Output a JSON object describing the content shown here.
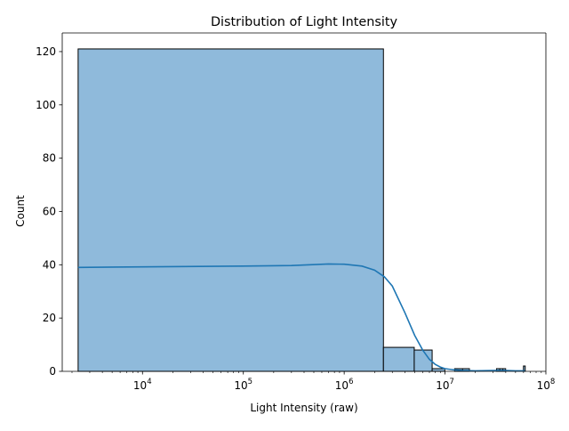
{
  "chart_data": {
    "type": "bar",
    "title": "Distribution of Light Intensity",
    "xlabel": "Light Intensity (raw)",
    "ylabel": "Count",
    "x_scale": "log",
    "xlim": [
      1600,
      100000000
    ],
    "ylim": [
      0,
      127
    ],
    "x_ticks": [
      {
        "value": 10000,
        "base": "10",
        "exp": "4"
      },
      {
        "value": 100000,
        "base": "10",
        "exp": "5"
      },
      {
        "value": 1000000,
        "base": "10",
        "exp": "6"
      },
      {
        "value": 10000000,
        "base": "10",
        "exp": "7"
      },
      {
        "value": 100000000,
        "base": "10",
        "exp": "8"
      }
    ],
    "y_ticks": [
      {
        "value": 0,
        "label": "0"
      },
      {
        "value": 20,
        "label": "20"
      },
      {
        "value": 40,
        "label": "40"
      },
      {
        "value": 60,
        "label": "60"
      },
      {
        "value": 80,
        "label": "80"
      },
      {
        "value": 100,
        "label": "100"
      },
      {
        "value": 120,
        "label": "120"
      }
    ],
    "bins": [
      {
        "x0": 2300,
        "x1": 2450000,
        "count": 121
      },
      {
        "x0": 2450000,
        "x1": 4950000,
        "count": 9
      },
      {
        "x0": 4950000,
        "x1": 7450000,
        "count": 8
      },
      {
        "x0": 7450000,
        "x1": 9950000,
        "count": 1
      },
      {
        "x0": 9950000,
        "x1": 12450000,
        "count": 0
      },
      {
        "x0": 12450000,
        "x1": 14950000,
        "count": 1
      },
      {
        "x0": 14950000,
        "x1": 17450000,
        "count": 1
      },
      {
        "x0": 17450000,
        "x1": 32400000,
        "count": 0
      },
      {
        "x0": 32400000,
        "x1": 34900000,
        "count": 1
      },
      {
        "x0": 34900000,
        "x1": 37400000,
        "count": 1
      },
      {
        "x0": 37400000,
        "x1": 39900000,
        "count": 1
      },
      {
        "x0": 39900000,
        "x1": 59900000,
        "count": 0
      },
      {
        "x0": 59900000,
        "x1": 62400000,
        "count": 2
      }
    ],
    "kde": {
      "x": [
        2300,
        10000,
        100000,
        300000,
        700000,
        1000000,
        1500000,
        2000000,
        2500000,
        3000000,
        4000000,
        5000000,
        6000000,
        7000000,
        8000000,
        9000000,
        10000000,
        12000000,
        15000000,
        20000000,
        30000000,
        40000000,
        50000000,
        62000000
      ],
      "y": [
        39,
        39.2,
        39.5,
        39.7,
        40.3,
        40.2,
        39.5,
        38,
        35.5,
        32,
        22,
        13.5,
        8,
        4.5,
        2.6,
        1.6,
        1.0,
        0.6,
        0.3,
        0.2,
        0.3,
        0.3,
        0.2,
        0.2
      ]
    },
    "colors": {
      "bar_fill": "#8fbadb",
      "bar_edge": "#000000",
      "kde_line": "#1f77b4"
    },
    "grid": false,
    "legend": "none"
  }
}
